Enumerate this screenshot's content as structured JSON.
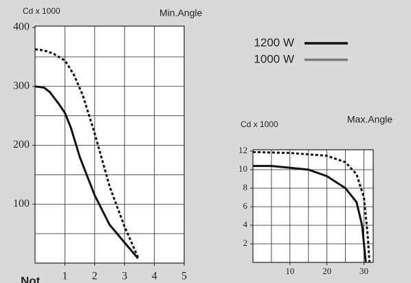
{
  "chart_data": [
    {
      "type": "line",
      "ylabel": "Cd x 1000",
      "title": "Min.Angle",
      "xlim": [
        0,
        5
      ],
      "ylim": [
        0,
        400
      ],
      "xticks": [
        1,
        2,
        3,
        4,
        5
      ],
      "yticks": [
        100,
        200,
        300,
        400
      ],
      "xgrid": [
        1,
        2,
        3,
        4
      ],
      "ygrid": [
        50,
        100,
        150,
        200,
        250,
        300,
        350
      ],
      "series": [
        {
          "name": "1200 W",
          "color": "#111111",
          "line_color": "#111111",
          "dash": false,
          "x": [
            0,
            0.3,
            0.5,
            0.8,
            1.0,
            1.2,
            1.5,
            2.0,
            2.5,
            3.0,
            3.45
          ],
          "values": [
            300,
            298,
            290,
            270,
            255,
            230,
            180,
            115,
            65,
            35,
            8
          ]
        },
        {
          "name": "1000 W",
          "color": "#7a7a7a",
          "line_color": "#111111",
          "dash": true,
          "x": [
            0,
            0.3,
            0.6,
            1.0,
            1.3,
            1.6,
            2.0,
            2.5,
            3.0,
            3.45
          ],
          "values": [
            363,
            361,
            356,
            344,
            320,
            285,
            220,
            130,
            62,
            10
          ]
        }
      ],
      "note": "Not"
    },
    {
      "type": "line",
      "ylabel": "Cd x 1000",
      "title": "Max.Angle",
      "xlim": [
        0,
        32.5
      ],
      "ylim": [
        0,
        12
      ],
      "xticks": [
        10,
        20,
        30
      ],
      "yticks": [
        2,
        4,
        6,
        8,
        10,
        12
      ],
      "xgrid": [
        5,
        10,
        15,
        20,
        25,
        30
      ],
      "ygrid": [
        2,
        4,
        6,
        8,
        10
      ],
      "series": [
        {
          "color": "#111111",
          "dash": false,
          "x": [
            0,
            5,
            10,
            15,
            20,
            25,
            28,
            29.5,
            30.5
          ],
          "values": [
            10.4,
            10.4,
            10.2,
            10.0,
            9.3,
            8,
            6.5,
            4,
            0
          ]
        },
        {
          "color": "#111111",
          "dash": true,
          "x": [
            0,
            10,
            20,
            25,
            28,
            30,
            31,
            31.5
          ],
          "values": [
            11.9,
            11.8,
            11.5,
            10.8,
            9.5,
            7,
            3,
            0
          ]
        }
      ]
    }
  ]
}
